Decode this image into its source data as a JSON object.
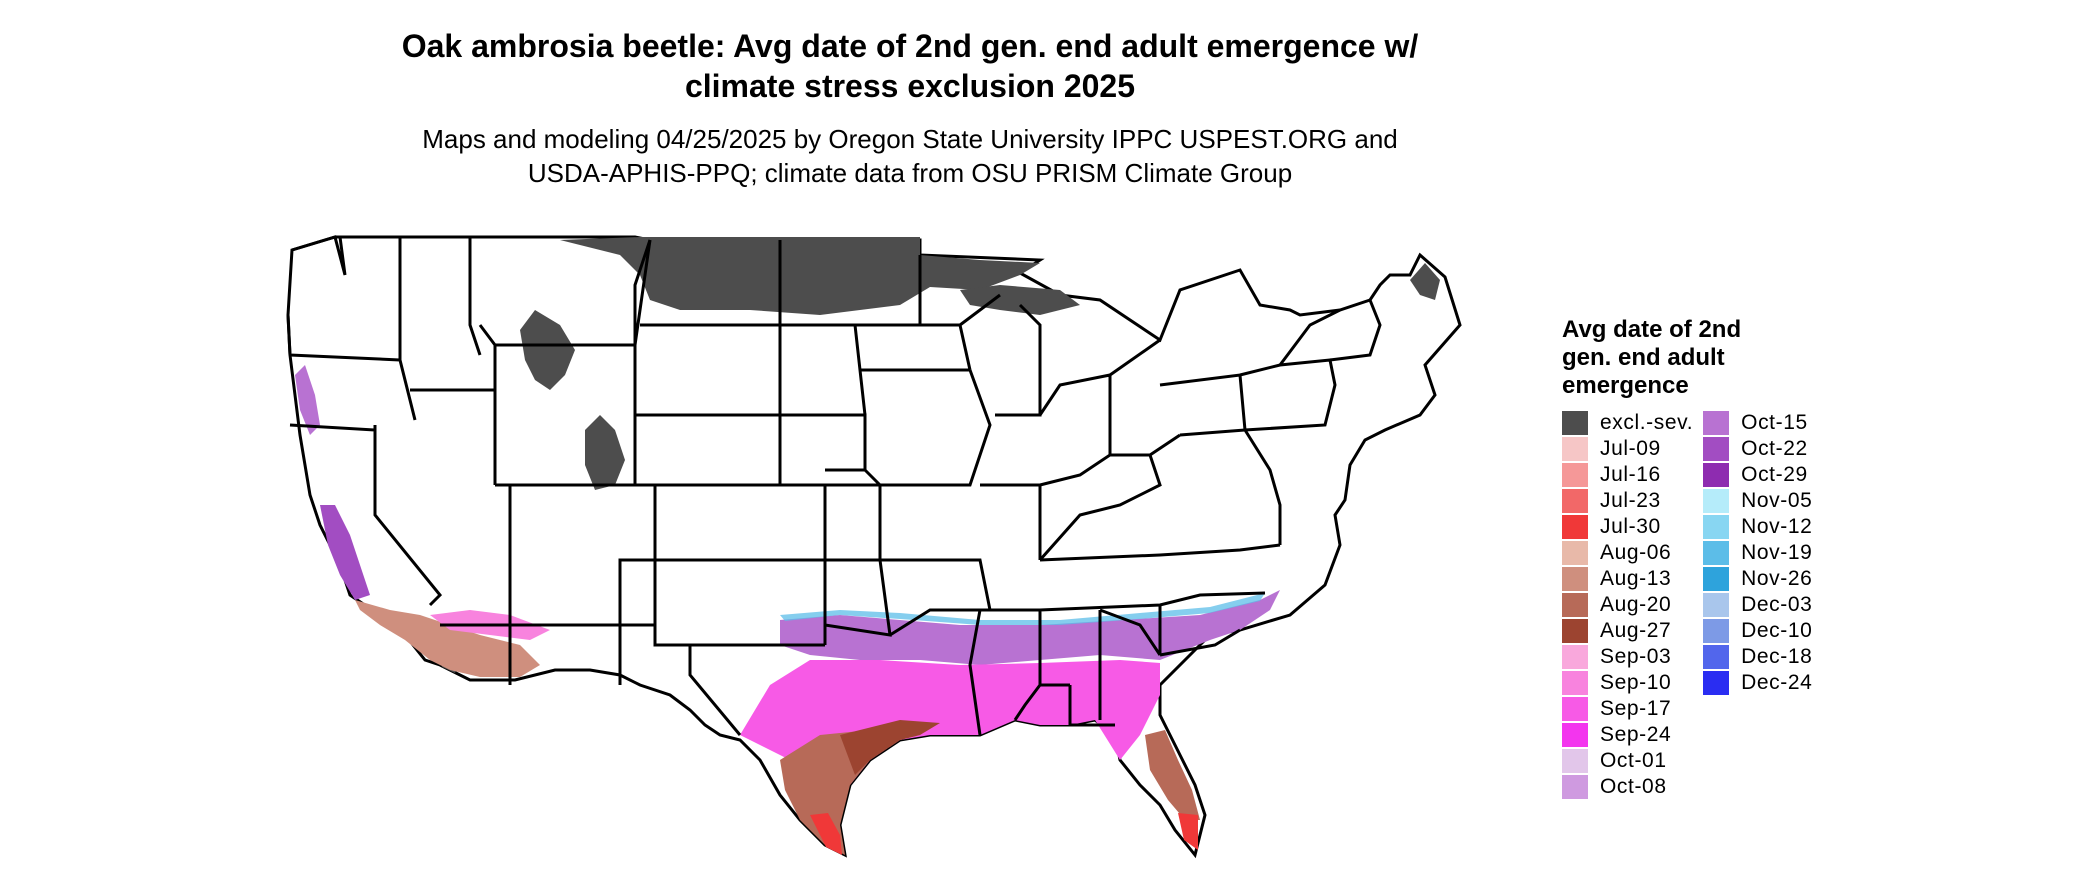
{
  "title_line1": "Oak ambrosia beetle: Avg date of 2nd gen. end adult emergence w/",
  "title_line2": "climate stress exclusion 2025",
  "subtitle_line1": "Maps and modeling 04/25/2025 by Oregon State University IPPC USPEST.ORG and",
  "subtitle_line2": "USDA-APHIS-PPQ; climate data from OSU PRISM Climate Group",
  "legend": {
    "title": "Avg date of 2nd gen. end adult emergence",
    "items": [
      {
        "label": "excl.-sev.",
        "color": "#4d4d4d"
      },
      {
        "label": "Jul-09",
        "color": "#f6c6c6"
      },
      {
        "label": "Jul-16",
        "color": "#f59898"
      },
      {
        "label": "Jul-23",
        "color": "#f26868"
      },
      {
        "label": "Jul-30",
        "color": "#f03838"
      },
      {
        "label": "Aug-06",
        "color": "#e8b9a9"
      },
      {
        "label": "Aug-13",
        "color": "#cf8f7e"
      },
      {
        "label": "Aug-20",
        "color": "#b76a58"
      },
      {
        "label": "Aug-27",
        "color": "#9c4430"
      },
      {
        "label": "Sep-03",
        "color": "#f9a8dc"
      },
      {
        "label": "Sep-10",
        "color": "#f883de"
      },
      {
        "label": "Sep-17",
        "color": "#f75ae6"
      },
      {
        "label": "Sep-24",
        "color": "#f335ee"
      },
      {
        "label": "Oct-01",
        "color": "#e2c6ea"
      },
      {
        "label": "Oct-08",
        "color": "#cf9ae0"
      },
      {
        "label": "Oct-15",
        "color": "#b872d2"
      },
      {
        "label": "Oct-22",
        "color": "#a24dc2"
      },
      {
        "label": "Oct-29",
        "color": "#8e2cb0"
      },
      {
        "label": "Nov-05",
        "color": "#b5ecfa"
      },
      {
        "label": "Nov-12",
        "color": "#88d6f2"
      },
      {
        "label": "Nov-19",
        "color": "#5cbde8"
      },
      {
        "label": "Nov-26",
        "color": "#2ea3dc"
      },
      {
        "label": "Dec-03",
        "color": "#a9c6ec"
      },
      {
        "label": "Dec-10",
        "color": "#7d9ae6"
      },
      {
        "label": "Dec-18",
        "color": "#5266ec"
      },
      {
        "label": "Dec-24",
        "color": "#2a2df2"
      }
    ]
  }
}
